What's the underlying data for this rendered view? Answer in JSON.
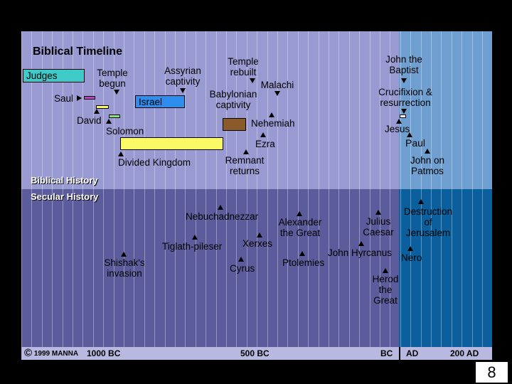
{
  "title": "Biblical Timeline",
  "sections": {
    "biblical": "Biblical History",
    "secular": "Secular History"
  },
  "axis": {
    "copyright_symbol": "©",
    "copyright": "1999 MANNA",
    "ticks": [
      "1000 BC",
      "500 BC",
      "BC",
      "AD",
      "200 AD"
    ]
  },
  "bars": {
    "judges": "Judges",
    "israel": "Israel"
  },
  "biblical_events": {
    "temple_begun": "Temple\nbegun",
    "assyrian_captivity": "Assyrian\ncaptivity",
    "temple_rebuilt": "Temple\nrebuilt",
    "malachi": "Malachi",
    "babylonian_captivity": "Babylonian\ncaptivity",
    "saul": "Saul",
    "david": "David",
    "solomon": "Solomon",
    "nehemiah": "Nehemiah",
    "ezra": "Ezra",
    "divided_kingdom": "Divided Kingdom",
    "remnant_returns": "Remnant\nreturns",
    "john_the_baptist": "John the\nBaptist",
    "crucifixion": "Crucifixion &\nresurrection",
    "jesus": "Jesus",
    "paul": "Paul",
    "john_on_patmos": "John on\nPatmos"
  },
  "secular_events": {
    "nebuchadnezzar": "Nebuchadnezzar",
    "alexander": "Alexander\nthe Great",
    "julius_caesar": "Julius\nCaesar",
    "destruction": "Destruction\nof\nJerusalem",
    "tiglath_pileser": "Tiglath-pileser",
    "xerxes": "Xerxes",
    "john_hyrcanus": "John Hyrcanus",
    "nero": "Nero",
    "shishak": "Shishak's\ninvasion",
    "cyrus": "Cyrus",
    "ptolemies": "Ptolemies",
    "herod": "Herod\nthe\nGreat"
  },
  "colors": {
    "biblical_bc": "#9a9ad2",
    "biblical_ad": "#6f9fd0",
    "secular_bc": "#5c5c9c",
    "secular_ad": "#0b5f9c",
    "judges": "#3fc9c9",
    "israel": "#2e8ef0",
    "divided_kingdom": "#fafa66",
    "babylonian": "#8a5a2a"
  },
  "page_number": "8"
}
